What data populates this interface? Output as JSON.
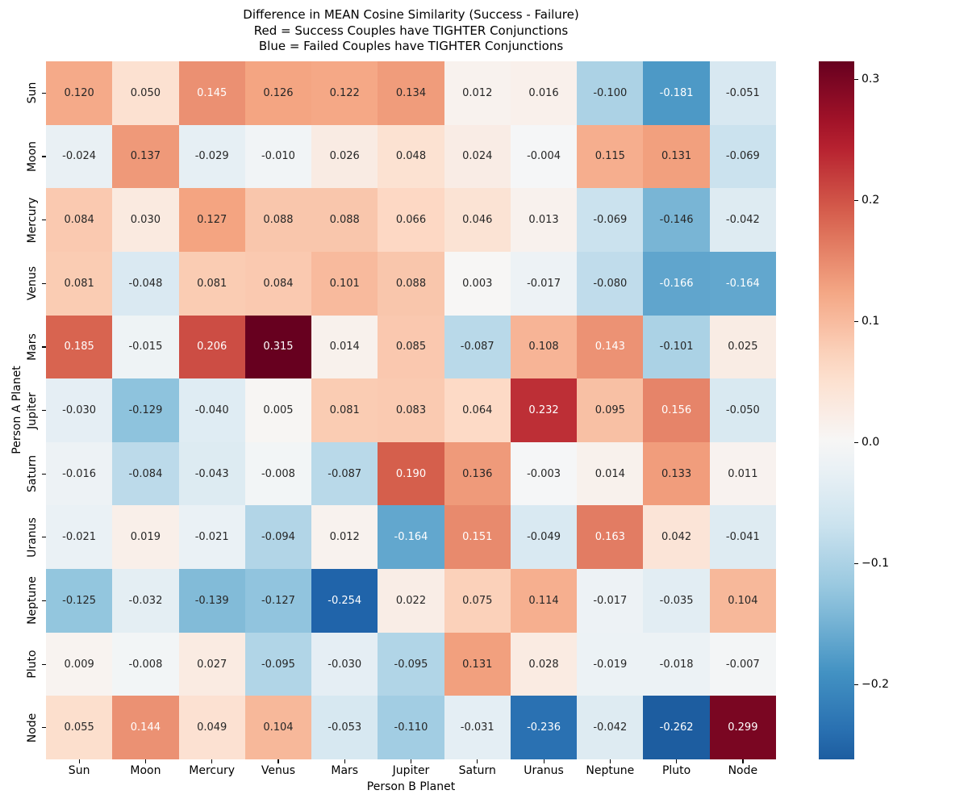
{
  "title": {
    "line1": "Difference in MEAN Cosine Similarity (Success - Failure)",
    "line2": "Red = Success Couples have TIGHTER Conjunctions",
    "line3": "Blue = Failed Couples have TIGHTER Conjunctions"
  },
  "chart_data": {
    "type": "heatmap",
    "title": "Difference in MEAN Cosine Similarity (Success - Failure)",
    "subtitle_lines": [
      "Red = Success Couples have TIGHTER Conjunctions",
      "Blue = Failed Couples have TIGHTER Conjunctions"
    ],
    "xlabel": "Person B Planet",
    "ylabel": "Person A Planet",
    "x_categories": [
      "Sun",
      "Moon",
      "Mercury",
      "Venus",
      "Mars",
      "Jupiter",
      "Saturn",
      "Uranus",
      "Neptune",
      "Pluto",
      "Node"
    ],
    "y_categories": [
      "Sun",
      "Moon",
      "Mercury",
      "Venus",
      "Mars",
      "Jupiter",
      "Saturn",
      "Uranus",
      "Neptune",
      "Pluto",
      "Node"
    ],
    "matrix": [
      [
        0.12,
        0.05,
        0.145,
        0.126,
        0.122,
        0.134,
        0.012,
        0.016,
        -0.1,
        -0.181,
        -0.051
      ],
      [
        -0.024,
        0.137,
        -0.029,
        -0.01,
        0.026,
        0.048,
        0.024,
        -0.004,
        0.115,
        0.131,
        -0.069
      ],
      [
        0.084,
        0.03,
        0.127,
        0.088,
        0.088,
        0.066,
        0.046,
        0.013,
        -0.069,
        -0.146,
        -0.042
      ],
      [
        0.081,
        -0.048,
        0.081,
        0.084,
        0.101,
        0.088,
        0.003,
        -0.017,
        -0.08,
        -0.166,
        -0.164
      ],
      [
        0.185,
        -0.015,
        0.206,
        0.315,
        0.014,
        0.085,
        -0.087,
        0.108,
        0.143,
        -0.101,
        0.025
      ],
      [
        -0.03,
        -0.129,
        -0.04,
        0.005,
        0.081,
        0.083,
        0.064,
        0.232,
        0.095,
        0.156,
        -0.05
      ],
      [
        -0.016,
        -0.084,
        -0.043,
        -0.008,
        -0.087,
        0.19,
        0.136,
        -0.003,
        0.014,
        0.133,
        0.011
      ],
      [
        -0.021,
        0.019,
        -0.021,
        -0.094,
        0.012,
        -0.164,
        0.151,
        -0.049,
        0.163,
        0.042,
        -0.041
      ],
      [
        -0.125,
        -0.032,
        -0.139,
        -0.127,
        -0.254,
        0.022,
        0.075,
        0.114,
        -0.017,
        -0.035,
        0.104
      ],
      [
        0.009,
        -0.008,
        0.027,
        -0.095,
        -0.03,
        -0.095,
        0.131,
        0.028,
        -0.019,
        -0.018,
        -0.007
      ],
      [
        0.055,
        0.144,
        0.049,
        0.104,
        -0.053,
        -0.11,
        -0.031,
        -0.236,
        -0.042,
        -0.262,
        0.299
      ]
    ],
    "annot_decimals": 3,
    "vmin": -0.262,
    "vmax": 0.315,
    "center": 0,
    "colormap": "RdBu_r",
    "legend_position": "right-colorbar",
    "grid": false,
    "colorbar_ticks": [
      {
        "label": "0.3",
        "value": 0.3
      },
      {
        "label": "0.2",
        "value": 0.2
      },
      {
        "label": "0.1",
        "value": 0.1
      },
      {
        "label": "0.0",
        "value": 0.0
      },
      {
        "label": "−0.1",
        "value": -0.1
      },
      {
        "label": "−0.2",
        "value": -0.2
      }
    ]
  },
  "colors": {
    "background": "#ffffff",
    "annot_dark": "#262626",
    "annot_light": "#ffffff",
    "tick": "#000000",
    "rdbu_r_stops": [
      "#053061",
      "#2166ac",
      "#4393c3",
      "#92c5de",
      "#d1e5f0",
      "#f7f7f7",
      "#fddbc7",
      "#f4a582",
      "#d6604d",
      "#b2182b",
      "#67001f"
    ]
  }
}
